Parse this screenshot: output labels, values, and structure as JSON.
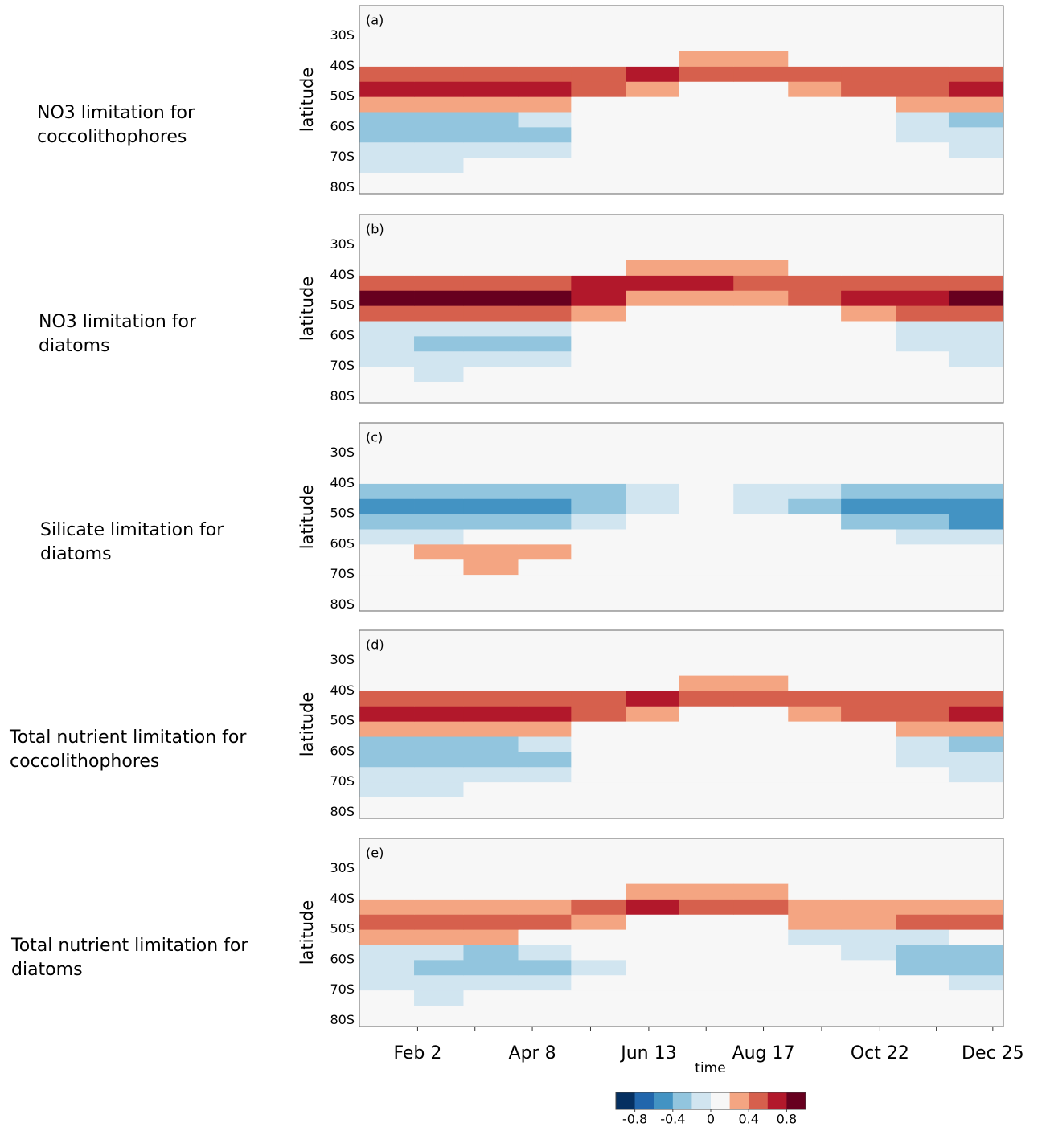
{
  "chart_data": [
    {
      "type": "heatmap",
      "panel_label": "(a)",
      "title_lines": [
        "NO3 limitation for",
        "coccolithophores"
      ],
      "ylabel": "latitude",
      "xlim": [
        0,
        365
      ],
      "ylim": [
        -82,
        -20
      ],
      "yticks": [
        {
          "value": -30,
          "label": "30S"
        },
        {
          "value": -40,
          "label": "40S"
        },
        {
          "value": -50,
          "label": "50S"
        },
        {
          "value": -60,
          "label": "60S"
        },
        {
          "value": -70,
          "label": "70S"
        },
        {
          "value": -80,
          "label": "80S"
        }
      ],
      "x_edges": [
        0,
        31,
        59,
        90,
        120,
        151,
        181,
        212,
        243,
        273,
        304,
        334,
        365
      ],
      "y_edges": [
        -80,
        -75,
        -70,
        -65,
        -60,
        -55,
        -50,
        -45,
        -40,
        -35
      ],
      "z": [
        [
          0,
          0,
          0,
          0,
          0,
          0,
          0,
          0,
          0,
          0,
          0,
          0
        ],
        [
          -0.1,
          -0.1,
          0,
          0,
          0,
          0,
          0,
          0,
          0,
          0,
          0,
          0
        ],
        [
          -0.1,
          -0.1,
          -0.1,
          -0.1,
          0,
          0,
          0,
          0,
          0,
          0,
          0,
          -0.1
        ],
        [
          -0.3,
          -0.3,
          -0.3,
          -0.3,
          0,
          0,
          0,
          0,
          0,
          0,
          -0.1,
          -0.1
        ],
        [
          -0.3,
          -0.3,
          -0.3,
          -0.1,
          0,
          0,
          0,
          0,
          0,
          0,
          -0.1,
          -0.3
        ],
        [
          0.3,
          0.3,
          0.3,
          0.3,
          0.1,
          0,
          0,
          0,
          0,
          0.1,
          0.3,
          0.3
        ],
        [
          0.7,
          0.7,
          0.7,
          0.7,
          0.5,
          0.3,
          0.1,
          0.1,
          0.3,
          0.5,
          0.5,
          0.7
        ],
        [
          0.5,
          0.5,
          0.5,
          0.5,
          0.5,
          0.7,
          0.5,
          0.5,
          0.5,
          0.5,
          0.5,
          0.5
        ],
        [
          0,
          0,
          0,
          0,
          0,
          0,
          0.3,
          0.3,
          0,
          0,
          0,
          0
        ]
      ]
    },
    {
      "type": "heatmap",
      "panel_label": "(b)",
      "title_lines": [
        "NO3 limitation for",
        "diatoms"
      ],
      "ylabel": "latitude",
      "xlim": [
        0,
        365
      ],
      "ylim": [
        -82,
        -20
      ],
      "yticks": [
        {
          "value": -30,
          "label": "30S"
        },
        {
          "value": -40,
          "label": "40S"
        },
        {
          "value": -50,
          "label": "50S"
        },
        {
          "value": -60,
          "label": "60S"
        },
        {
          "value": -70,
          "label": "70S"
        },
        {
          "value": -80,
          "label": "80S"
        }
      ],
      "x_edges": [
        0,
        31,
        59,
        90,
        120,
        151,
        181,
        212,
        243,
        273,
        304,
        334,
        365
      ],
      "y_edges": [
        -80,
        -75,
        -70,
        -65,
        -60,
        -55,
        -50,
        -45,
        -40,
        -35
      ],
      "z": [
        [
          0,
          0,
          0,
          0,
          0,
          0,
          0,
          0,
          0,
          0,
          0,
          0
        ],
        [
          0,
          -0.1,
          0,
          0,
          0,
          0,
          0,
          0,
          0,
          0,
          0,
          0
        ],
        [
          -0.1,
          -0.1,
          -0.1,
          -0.1,
          0,
          0,
          0,
          0,
          0,
          0,
          0,
          -0.1
        ],
        [
          -0.1,
          -0.3,
          -0.3,
          -0.3,
          0,
          0,
          0,
          0,
          0,
          0,
          -0.1,
          -0.1
        ],
        [
          -0.1,
          -0.1,
          -0.1,
          -0.1,
          0,
          0,
          0,
          0,
          0,
          0,
          -0.1,
          -0.1
        ],
        [
          0.5,
          0.5,
          0.5,
          0.5,
          0.3,
          0,
          0,
          0,
          0,
          0.3,
          0.5,
          0.5
        ],
        [
          0.9,
          0.9,
          0.9,
          0.9,
          0.7,
          0.3,
          0.3,
          0.3,
          0.5,
          0.7,
          0.7,
          0.9
        ],
        [
          0.5,
          0.5,
          0.5,
          0.5,
          0.7,
          0.7,
          0.7,
          0.5,
          0.5,
          0.5,
          0.5,
          0.5
        ],
        [
          0,
          0,
          0,
          0,
          0,
          0.3,
          0.3,
          0.3,
          0,
          0,
          0,
          0
        ]
      ]
    },
    {
      "type": "heatmap",
      "panel_label": "(c)",
      "title_lines": [
        "Silicate limitation for",
        "diatoms"
      ],
      "ylabel": "latitude",
      "xlim": [
        0,
        365
      ],
      "ylim": [
        -82,
        -20
      ],
      "yticks": [
        {
          "value": -30,
          "label": "30S"
        },
        {
          "value": -40,
          "label": "40S"
        },
        {
          "value": -50,
          "label": "50S"
        },
        {
          "value": -60,
          "label": "60S"
        },
        {
          "value": -70,
          "label": "70S"
        },
        {
          "value": -80,
          "label": "80S"
        }
      ],
      "x_edges": [
        0,
        31,
        59,
        90,
        120,
        151,
        181,
        212,
        243,
        273,
        304,
        334,
        365
      ],
      "y_edges": [
        -80,
        -75,
        -70,
        -65,
        -60,
        -55,
        -50,
        -45,
        -40,
        -35
      ],
      "z": [
        [
          0,
          0,
          0,
          0,
          0,
          0,
          0,
          0,
          0,
          0,
          0,
          0
        ],
        [
          0,
          0,
          0,
          0,
          0,
          0,
          0,
          0,
          0,
          0,
          0,
          0
        ],
        [
          0,
          0,
          0.3,
          0,
          0,
          0,
          0,
          0,
          0,
          0,
          0,
          0
        ],
        [
          0,
          0.3,
          0.3,
          0.3,
          0,
          0,
          0,
          0,
          0,
          0,
          0,
          0
        ],
        [
          -0.1,
          -0.1,
          0,
          0,
          0,
          0,
          0,
          0,
          0,
          0,
          -0.1,
          -0.1
        ],
        [
          -0.3,
          -0.3,
          -0.3,
          -0.3,
          -0.1,
          0,
          0,
          0,
          0,
          -0.3,
          -0.3,
          -0.5
        ],
        [
          -0.5,
          -0.5,
          -0.5,
          -0.5,
          -0.3,
          -0.1,
          0,
          -0.1,
          -0.3,
          -0.5,
          -0.5,
          -0.5
        ],
        [
          -0.3,
          -0.3,
          -0.3,
          -0.3,
          -0.3,
          -0.1,
          0,
          -0.1,
          -0.1,
          -0.3,
          -0.3,
          -0.3
        ],
        [
          0,
          0,
          0,
          0,
          0,
          0,
          0,
          0,
          0,
          0,
          0,
          0
        ]
      ]
    },
    {
      "type": "heatmap",
      "panel_label": "(d)",
      "title_lines": [
        "Total nutrient limitation for",
        "coccolithophores"
      ],
      "ylabel": "latitude",
      "xlim": [
        0,
        365
      ],
      "ylim": [
        -82,
        -20
      ],
      "yticks": [
        {
          "value": -30,
          "label": "30S"
        },
        {
          "value": -40,
          "label": "40S"
        },
        {
          "value": -50,
          "label": "50S"
        },
        {
          "value": -60,
          "label": "60S"
        },
        {
          "value": -70,
          "label": "70S"
        },
        {
          "value": -80,
          "label": "80S"
        }
      ],
      "x_edges": [
        0,
        31,
        59,
        90,
        120,
        151,
        181,
        212,
        243,
        273,
        304,
        334,
        365
      ],
      "y_edges": [
        -80,
        -75,
        -70,
        -65,
        -60,
        -55,
        -50,
        -45,
        -40,
        -35
      ],
      "z": [
        [
          0,
          0,
          0,
          0,
          0,
          0,
          0,
          0,
          0,
          0,
          0,
          0
        ],
        [
          -0.1,
          -0.1,
          0,
          0,
          0,
          0,
          0,
          0,
          0,
          0,
          0,
          0
        ],
        [
          -0.1,
          -0.1,
          -0.1,
          -0.1,
          0,
          0,
          0,
          0,
          0,
          0,
          0,
          -0.1
        ],
        [
          -0.3,
          -0.3,
          -0.3,
          -0.3,
          0,
          0,
          0,
          0,
          0,
          0,
          -0.1,
          -0.1
        ],
        [
          -0.3,
          -0.3,
          -0.3,
          -0.1,
          0,
          0,
          0,
          0,
          0,
          0,
          -0.1,
          -0.3
        ],
        [
          0.3,
          0.3,
          0.3,
          0.3,
          0.1,
          0,
          0,
          0,
          0,
          0.1,
          0.3,
          0.3
        ],
        [
          0.7,
          0.7,
          0.7,
          0.7,
          0.5,
          0.3,
          0.1,
          0.1,
          0.3,
          0.5,
          0.5,
          0.7
        ],
        [
          0.5,
          0.5,
          0.5,
          0.5,
          0.5,
          0.7,
          0.5,
          0.5,
          0.5,
          0.5,
          0.5,
          0.5
        ],
        [
          0,
          0,
          0,
          0,
          0,
          0.1,
          0.3,
          0.3,
          0.1,
          0,
          0,
          0
        ]
      ]
    },
    {
      "type": "heatmap",
      "panel_label": "(e)",
      "title_lines": [
        "Total nutrient limitation for",
        "diatoms"
      ],
      "ylabel": "latitude",
      "xlabel": "time",
      "xlim": [
        0,
        365
      ],
      "ylim": [
        -82,
        -20
      ],
      "yticks": [
        {
          "value": -30,
          "label": "30S"
        },
        {
          "value": -40,
          "label": "40S"
        },
        {
          "value": -50,
          "label": "50S"
        },
        {
          "value": -60,
          "label": "60S"
        },
        {
          "value": -70,
          "label": "70S"
        },
        {
          "value": -80,
          "label": "80S"
        }
      ],
      "xticks": [
        {
          "value": 33,
          "label": "Feb 2"
        },
        {
          "value": 98,
          "label": "Apr 8"
        },
        {
          "value": 164,
          "label": "Jun 13"
        },
        {
          "value": 229,
          "label": "Aug 17"
        },
        {
          "value": 295,
          "label": "Oct 22"
        },
        {
          "value": 359,
          "label": "Dec 25"
        }
      ],
      "xminorticks": [
        65.5,
        131,
        196.5,
        262,
        327
      ],
      "x_edges": [
        0,
        31,
        59,
        90,
        120,
        151,
        181,
        212,
        243,
        273,
        304,
        334,
        365
      ],
      "y_edges": [
        -80,
        -75,
        -70,
        -65,
        -60,
        -55,
        -50,
        -45,
        -40,
        -35
      ],
      "z": [
        [
          0,
          0,
          0,
          0,
          0,
          0,
          0,
          0,
          0,
          0,
          0,
          0
        ],
        [
          0,
          -0.1,
          0,
          0,
          0,
          0,
          0,
          0,
          0,
          0,
          0,
          0
        ],
        [
          -0.1,
          -0.1,
          -0.1,
          -0.1,
          0,
          0,
          0,
          0,
          0,
          0,
          0,
          -0.1
        ],
        [
          -0.1,
          -0.3,
          -0.3,
          -0.3,
          -0.1,
          0,
          0,
          0,
          0,
          0,
          -0.3,
          -0.3
        ],
        [
          -0.1,
          -0.1,
          -0.3,
          -0.1,
          0,
          0,
          0,
          0,
          0,
          -0.1,
          -0.3,
          -0.3
        ],
        [
          0.3,
          0.3,
          0.3,
          0,
          0,
          0,
          0,
          0,
          -0.1,
          -0.1,
          -0.1,
          0
        ],
        [
          0.5,
          0.5,
          0.5,
          0.5,
          0.3,
          0,
          0,
          0,
          0.3,
          0.3,
          0.5,
          0.5
        ],
        [
          0.3,
          0.3,
          0.3,
          0.3,
          0.5,
          0.7,
          0.5,
          0.5,
          0.3,
          0.3,
          0.3,
          0.3
        ],
        [
          0,
          0,
          0,
          0,
          0,
          0.3,
          0.3,
          0.3,
          0,
          0,
          0,
          0
        ]
      ]
    }
  ],
  "colorbar": {
    "levels": [
      -1,
      -0.8,
      -0.6,
      -0.4,
      -0.2,
      0,
      0.2,
      0.4,
      0.6,
      0.8,
      1
    ],
    "colors": [
      "#053061",
      "#2166ac",
      "#4393c3",
      "#92c5de",
      "#d1e5f0",
      "#f7f7f7",
      "#f4a582",
      "#d6604d",
      "#b2182b",
      "#67001f"
    ],
    "ticks": [
      -0.8,
      -0.4,
      0,
      0.4,
      0.8
    ]
  }
}
